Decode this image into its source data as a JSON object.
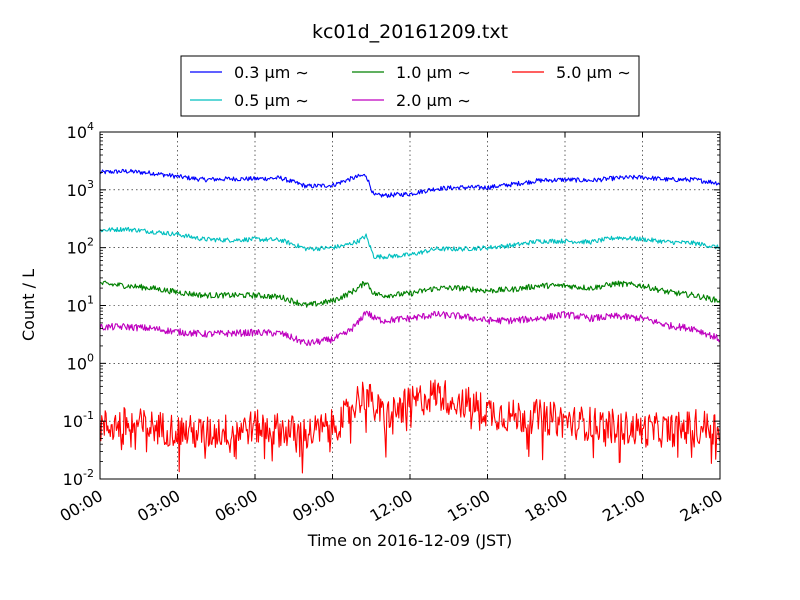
{
  "chart_data": {
    "type": "line",
    "title": "kc01d_20161209.txt",
    "xlabel": "Time on 2016-12-09 (JST)",
    "ylabel": "Count / L",
    "y_scale": "log",
    "ylim": [
      0.01,
      10000
    ],
    "xlim": [
      "00:00",
      "24:00"
    ],
    "x_unit": "hours",
    "x_ticks": [
      {
        "label": "00:00",
        "value": 0
      },
      {
        "label": "03:00",
        "value": 3
      },
      {
        "label": "06:00",
        "value": 6
      },
      {
        "label": "09:00",
        "value": 9
      },
      {
        "label": "12:00",
        "value": 12
      },
      {
        "label": "15:00",
        "value": 15
      },
      {
        "label": "18:00",
        "value": 18
      },
      {
        "label": "21:00",
        "value": 21
      },
      {
        "label": "24:00",
        "value": 24
      }
    ],
    "y_ticks": [
      {
        "base": "10",
        "exp": "-2",
        "value": 0.01
      },
      {
        "base": "10",
        "exp": "-1",
        "value": 0.1
      },
      {
        "base": "10",
        "exp": "0",
        "value": 1
      },
      {
        "base": "10",
        "exp": "1",
        "value": 10
      },
      {
        "base": "10",
        "exp": "2",
        "value": 100
      },
      {
        "base": "10",
        "exp": "3",
        "value": 1000
      },
      {
        "base": "10",
        "exp": "4",
        "value": 10000
      }
    ],
    "grid": true,
    "legend_position": "top-center, above plot",
    "series": [
      {
        "name": "0.3 μm ∼",
        "color": "#0000ff",
        "x": [
          0,
          1,
          2,
          3,
          4,
          5,
          6,
          7,
          8,
          9,
          9.5,
          10,
          10.3,
          10.6,
          11,
          12,
          13,
          14,
          15,
          16,
          17,
          18,
          19,
          20,
          21,
          22,
          23,
          24
        ],
        "values": [
          2000,
          2100,
          1950,
          1700,
          1500,
          1550,
          1550,
          1600,
          1150,
          1200,
          1450,
          1700,
          1800,
          800,
          800,
          850,
          1050,
          1100,
          1100,
          1250,
          1450,
          1500,
          1450,
          1600,
          1650,
          1500,
          1500,
          1300
        ]
      },
      {
        "name": "0.5 μm ∼",
        "color": "#00bfbf",
        "x": [
          0,
          1,
          2,
          3,
          4,
          5,
          6,
          7,
          8,
          9,
          9.5,
          10,
          10.3,
          10.6,
          11,
          12,
          13,
          14,
          15,
          16,
          17,
          18,
          19,
          20,
          21,
          22,
          23,
          24
        ],
        "values": [
          200,
          210,
          190,
          170,
          140,
          135,
          140,
          135,
          95,
          100,
          110,
          130,
          160,
          70,
          70,
          75,
          95,
          95,
          100,
          110,
          130,
          130,
          125,
          150,
          140,
          125,
          120,
          100
        ]
      },
      {
        "name": "1.0 μm ∼",
        "color": "#008000",
        "x": [
          0,
          1,
          2,
          3,
          4,
          5,
          6,
          7,
          8,
          9,
          9.5,
          10,
          10.3,
          10.6,
          11,
          12,
          13,
          14,
          15,
          16,
          17,
          18,
          19,
          20,
          21,
          22,
          23,
          24
        ],
        "values": [
          24,
          22,
          20,
          17,
          15,
          15,
          15,
          14,
          10,
          12,
          15,
          20,
          26,
          16,
          15,
          16,
          20,
          20,
          18,
          19,
          22,
          22,
          20,
          24,
          22,
          17,
          15,
          12
        ]
      },
      {
        "name": "2.0 μm ∼",
        "color": "#bf00bf",
        "x": [
          0,
          1,
          2,
          3,
          4,
          5,
          6,
          7,
          8,
          9,
          9.5,
          10,
          10.3,
          10.6,
          11,
          12,
          13,
          14,
          15,
          16,
          17,
          18,
          19,
          20,
          21,
          22,
          23,
          24
        ],
        "values": [
          4.2,
          4.3,
          4.0,
          3.5,
          3.2,
          3.3,
          3.4,
          3.3,
          2.2,
          2.6,
          3.2,
          5,
          8,
          6,
          5.5,
          6,
          7,
          6.5,
          5.5,
          5.5,
          6,
          7,
          6,
          6.5,
          6,
          4.5,
          4,
          2.6
        ]
      },
      {
        "name": "5.0 μm ∼",
        "color": "#ff0000",
        "x": [
          0,
          1,
          2,
          3,
          4,
          5,
          6,
          7,
          8,
          9,
          9.5,
          10,
          10.3,
          10.6,
          11,
          12,
          13,
          14,
          15,
          16,
          17,
          18,
          19,
          20,
          21,
          22,
          23,
          24
        ],
        "values": [
          0.08,
          0.09,
          0.08,
          0.07,
          0.06,
          0.07,
          0.08,
          0.07,
          0.06,
          0.08,
          0.12,
          0.25,
          0.3,
          0.18,
          0.12,
          0.2,
          0.3,
          0.22,
          0.15,
          0.12,
          0.12,
          0.1,
          0.09,
          0.08,
          0.07,
          0.07,
          0.08,
          0.08
        ]
      }
    ]
  }
}
